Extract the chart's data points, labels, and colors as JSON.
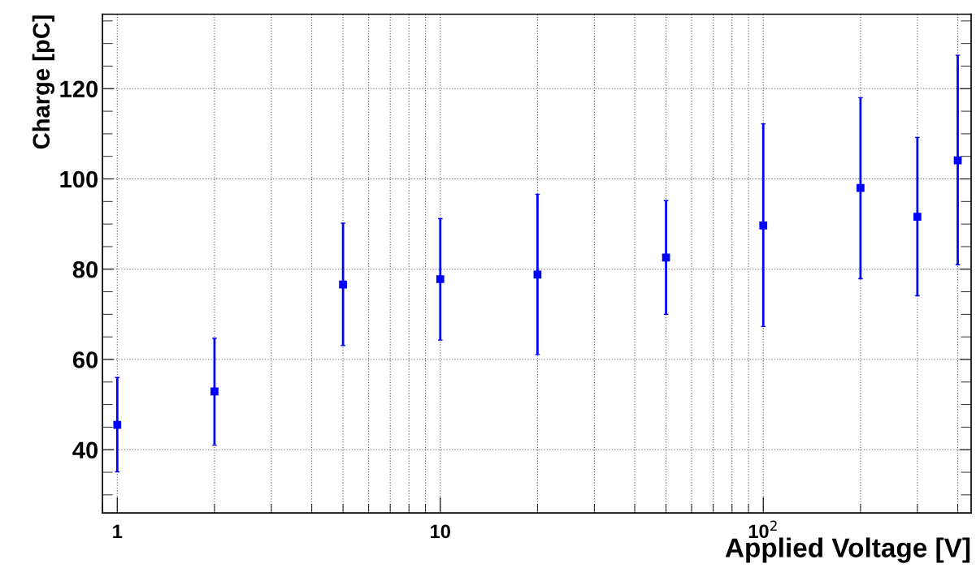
{
  "chart_data": {
    "type": "scatter",
    "xlabel": "Applied Voltage [V]",
    "ylabel": "Charge [pC]",
    "x": [
      1,
      2,
      5,
      10,
      20,
      50,
      100,
      200,
      300,
      400
    ],
    "series": [
      {
        "color": "#0000ff",
        "values": [
          45.5,
          52.9,
          76.6,
          77.8,
          78.8,
          82.6,
          89.7,
          98.0,
          91.6,
          104.1
        ],
        "errors": [
          [
            35.1,
            56.0
          ],
          [
            41.0,
            64.7
          ],
          [
            63.1,
            90.2
          ],
          [
            64.3,
            91.2
          ],
          [
            61.1,
            96.6
          ],
          [
            70.0,
            95.2
          ],
          [
            67.3,
            112.2
          ],
          [
            77.9,
            118.0
          ],
          [
            74.1,
            109.2
          ],
          [
            81.0,
            127.4
          ]
        ]
      }
    ],
    "log": "x",
    "xlim": [
      0.9,
      440
    ],
    "xticks": [
      1,
      10,
      {
        "value": 100,
        "label": "10$^{2}$"
      }
    ],
    "ylim": [
      26,
      136.5
    ],
    "yticks": [
      40,
      60,
      80,
      100,
      120
    ],
    "grid": true,
    "marker": "square",
    "legend": false
  }
}
